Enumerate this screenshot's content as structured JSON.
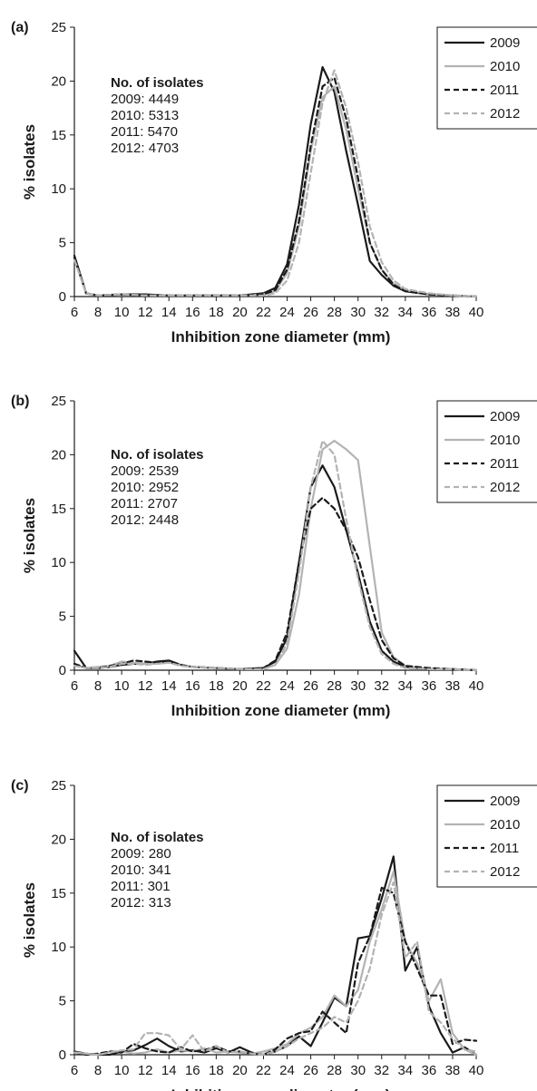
{
  "chart_data": [
    {
      "type": "line",
      "panel_label": "(a)",
      "xlabel": "Inhibition zone diameter (mm)",
      "ylabel": "% isolates",
      "xlim": [
        6,
        40
      ],
      "ylim": [
        0,
        25
      ],
      "x_ticks": [
        6,
        8,
        10,
        12,
        14,
        16,
        18,
        20,
        22,
        24,
        26,
        28,
        30,
        32,
        34,
        36,
        38,
        40
      ],
      "y_ticks": [
        0,
        5,
        10,
        15,
        20,
        25
      ],
      "grid": false,
      "legend_position": "top-right",
      "isolates": {
        "title": "No. of isolates",
        "lines": [
          "2009: 4449",
          "2010: 5313",
          "2011: 5470",
          "2012: 4703"
        ]
      },
      "series": [
        {
          "name": "2009",
          "color": "#1a1a1a",
          "dash": "solid",
          "x": [
            6,
            7,
            8,
            10,
            12,
            14,
            16,
            18,
            20,
            22,
            23,
            24,
            25,
            26,
            27,
            28,
            29,
            30,
            31,
            32,
            33,
            34,
            36,
            38,
            40
          ],
          "y": [
            3.8,
            0.3,
            0.1,
            0.2,
            0.2,
            0.1,
            0.1,
            0.1,
            0.1,
            0.3,
            0.8,
            3.0,
            8.5,
            16.0,
            21.3,
            19.0,
            13.5,
            8.5,
            3.3,
            2.0,
            1.0,
            0.5,
            0.2,
            0.1,
            0.0
          ]
        },
        {
          "name": "2010",
          "color": "#b3b3b3",
          "dash": "solid",
          "x": [
            6,
            7,
            8,
            10,
            12,
            14,
            16,
            18,
            20,
            22,
            23,
            24,
            25,
            26,
            27,
            28,
            29,
            30,
            31,
            32,
            33,
            34,
            36,
            38,
            40
          ],
          "y": [
            3.5,
            0.3,
            0.1,
            0.2,
            0.1,
            0.1,
            0.1,
            0.1,
            0.1,
            0.2,
            0.5,
            2.2,
            6.5,
            13.5,
            18.5,
            19.5,
            15.5,
            10.0,
            5.0,
            2.5,
            1.2,
            0.6,
            0.2,
            0.1,
            0.0
          ]
        },
        {
          "name": "2011",
          "color": "#1a1a1a",
          "dash": "dashed",
          "x": [
            6,
            7,
            8,
            10,
            12,
            14,
            16,
            18,
            20,
            22,
            23,
            24,
            25,
            26,
            27,
            28,
            29,
            30,
            31,
            32,
            33,
            34,
            36,
            38,
            40
          ],
          "y": [
            3.6,
            0.3,
            0.1,
            0.2,
            0.1,
            0.1,
            0.1,
            0.1,
            0.1,
            0.2,
            0.6,
            2.5,
            7.0,
            14.0,
            19.5,
            20.3,
            16.5,
            11.0,
            5.0,
            2.5,
            1.1,
            0.5,
            0.2,
            0.1,
            0.0
          ]
        },
        {
          "name": "2012",
          "color": "#b3b3b3",
          "dash": "dashed",
          "x": [
            6,
            7,
            8,
            10,
            12,
            14,
            16,
            18,
            20,
            22,
            23,
            24,
            25,
            26,
            27,
            28,
            29,
            30,
            31,
            32,
            33,
            34,
            36,
            38,
            40
          ],
          "y": [
            3.4,
            0.3,
            0.1,
            0.2,
            0.1,
            0.1,
            0.1,
            0.1,
            0.1,
            0.1,
            0.3,
            1.5,
            5.0,
            11.5,
            18.0,
            21.0,
            17.5,
            12.5,
            6.5,
            3.2,
            1.5,
            0.7,
            0.3,
            0.1,
            0.0
          ]
        }
      ]
    },
    {
      "type": "line",
      "panel_label": "(b)",
      "xlabel": "Inhibition zone diameter (mm)",
      "ylabel": "% isolates",
      "xlim": [
        6,
        40
      ],
      "ylim": [
        0,
        25
      ],
      "x_ticks": [
        6,
        8,
        10,
        12,
        14,
        16,
        18,
        20,
        22,
        24,
        26,
        28,
        30,
        32,
        34,
        36,
        38,
        40
      ],
      "y_ticks": [
        0,
        5,
        10,
        15,
        20,
        25
      ],
      "grid": false,
      "legend_position": "top-right",
      "isolates": {
        "title": "No. of isolates",
        "lines": [
          "2009: 2539",
          "2010: 2952",
          "2011: 2707",
          "2012: 2448"
        ]
      },
      "series": [
        {
          "name": "2009",
          "color": "#1a1a1a",
          "dash": "solid",
          "x": [
            6,
            7,
            8,
            9,
            10,
            11,
            12,
            13,
            14,
            15,
            16,
            18,
            20,
            22,
            23,
            24,
            25,
            26,
            27,
            28,
            29,
            30,
            31,
            32,
            33,
            34,
            36,
            38,
            40
          ],
          "y": [
            1.8,
            0.2,
            0.2,
            0.3,
            0.5,
            0.6,
            0.6,
            0.8,
            0.9,
            0.5,
            0.3,
            0.2,
            0.1,
            0.2,
            0.8,
            3.0,
            10.0,
            17.0,
            19.0,
            17.0,
            13.0,
            9.0,
            4.5,
            1.8,
            0.8,
            0.3,
            0.1,
            0.1,
            0.0
          ]
        },
        {
          "name": "2010",
          "color": "#b3b3b3",
          "dash": "solid",
          "x": [
            6,
            7,
            8,
            9,
            10,
            11,
            12,
            13,
            14,
            15,
            16,
            18,
            20,
            22,
            23,
            24,
            25,
            26,
            27,
            28,
            29,
            30,
            31,
            32,
            33,
            34,
            36,
            38,
            40
          ],
          "y": [
            0.5,
            0.2,
            0.3,
            0.4,
            0.8,
            0.7,
            0.6,
            0.6,
            0.7,
            0.5,
            0.3,
            0.2,
            0.1,
            0.1,
            0.5,
            2.0,
            7.0,
            15.0,
            20.5,
            21.3,
            20.5,
            19.5,
            11.5,
            3.5,
            1.2,
            0.4,
            0.1,
            0.1,
            0.0
          ]
        },
        {
          "name": "2011",
          "color": "#1a1a1a",
          "dash": "dashed",
          "x": [
            6,
            7,
            8,
            9,
            10,
            11,
            12,
            13,
            14,
            15,
            16,
            18,
            20,
            22,
            23,
            24,
            25,
            26,
            27,
            28,
            29,
            30,
            31,
            32,
            33,
            34,
            36,
            38,
            40
          ],
          "y": [
            0.6,
            0.2,
            0.2,
            0.4,
            0.6,
            0.9,
            0.8,
            0.7,
            0.8,
            0.5,
            0.3,
            0.2,
            0.1,
            0.2,
            0.9,
            3.5,
            10.0,
            15.0,
            16.0,
            15.0,
            13.0,
            10.5,
            6.5,
            2.8,
            1.1,
            0.4,
            0.2,
            0.1,
            0.0
          ]
        },
        {
          "name": "2012",
          "color": "#b3b3b3",
          "dash": "dashed",
          "x": [
            6,
            7,
            8,
            9,
            10,
            11,
            12,
            13,
            14,
            15,
            16,
            18,
            20,
            22,
            23,
            24,
            25,
            26,
            27,
            28,
            29,
            30,
            31,
            32,
            33,
            34,
            36,
            38,
            40
          ],
          "y": [
            0.4,
            0.2,
            0.2,
            0.3,
            0.6,
            0.6,
            0.5,
            0.6,
            0.7,
            0.4,
            0.3,
            0.2,
            0.1,
            0.1,
            0.5,
            2.5,
            9.0,
            17.0,
            21.3,
            20.0,
            14.0,
            8.5,
            4.0,
            1.5,
            0.6,
            0.2,
            0.1,
            0.1,
            0.0
          ]
        }
      ]
    },
    {
      "type": "line",
      "panel_label": "(c)",
      "xlabel": "Inhibition zone diameter (mm)",
      "ylabel": "% isolates",
      "xlim": [
        6,
        40
      ],
      "ylim": [
        0,
        25
      ],
      "x_ticks": [
        6,
        8,
        10,
        12,
        14,
        16,
        18,
        20,
        22,
        24,
        26,
        28,
        30,
        32,
        34,
        36,
        38,
        40
      ],
      "y_ticks": [
        0,
        5,
        10,
        15,
        20,
        25
      ],
      "grid": false,
      "legend_position": "top-right",
      "isolates": {
        "title": "No. of isolates",
        "lines": [
          "2009: 280",
          "2010: 341",
          "2011: 301",
          "2012: 313"
        ]
      },
      "series": [
        {
          "name": "2009",
          "color": "#1a1a1a",
          "dash": "solid",
          "x": [
            6,
            7,
            8,
            9,
            10,
            11,
            12,
            13,
            14,
            15,
            16,
            17,
            18,
            19,
            20,
            21,
            22,
            23,
            24,
            25,
            26,
            27,
            28,
            29,
            30,
            31,
            32,
            33,
            34,
            35,
            36,
            37,
            38,
            39,
            40
          ],
          "y": [
            0.3,
            0.1,
            0.0,
            0.0,
            0.3,
            0.4,
            0.9,
            1.5,
            0.8,
            0.3,
            0.4,
            0.2,
            0.6,
            0.2,
            0.7,
            0.2,
            0.0,
            0.3,
            0.8,
            1.7,
            0.8,
            3.0,
            5.3,
            4.5,
            10.8,
            11.0,
            14.5,
            18.4,
            7.8,
            10.0,
            4.5,
            2.0,
            0.2,
            0.7,
            0.0
          ]
        },
        {
          "name": "2010",
          "color": "#b3b3b3",
          "dash": "solid",
          "x": [
            6,
            7,
            8,
            9,
            10,
            11,
            12,
            13,
            14,
            15,
            16,
            17,
            18,
            19,
            20,
            21,
            22,
            23,
            24,
            25,
            26,
            27,
            28,
            29,
            30,
            31,
            32,
            33,
            34,
            35,
            36,
            37,
            38,
            39,
            40
          ],
          "y": [
            0.2,
            0.1,
            0.0,
            0.3,
            0.3,
            0.1,
            0.2,
            0.5,
            0.2,
            0.4,
            0.3,
            0.6,
            0.2,
            0.3,
            0.2,
            0.1,
            0.3,
            0.6,
            1.0,
            2.0,
            2.5,
            3.5,
            5.5,
            4.5,
            6.0,
            10.5,
            13.5,
            17.0,
            10.5,
            8.5,
            5.0,
            7.0,
            2.0,
            0.5,
            0.0
          ]
        },
        {
          "name": "2011",
          "color": "#1a1a1a",
          "dash": "dashed",
          "x": [
            6,
            7,
            8,
            9,
            10,
            11,
            12,
            13,
            14,
            15,
            16,
            17,
            18,
            19,
            20,
            21,
            22,
            23,
            24,
            25,
            26,
            27,
            28,
            29,
            30,
            31,
            32,
            33,
            34,
            35,
            36,
            37,
            38,
            39,
            40
          ],
          "y": [
            0.2,
            0.0,
            0.1,
            0.3,
            0.2,
            1.0,
            0.6,
            0.3,
            0.2,
            0.7,
            0.3,
            0.4,
            0.8,
            0.3,
            0.3,
            0.1,
            0.0,
            0.5,
            1.5,
            2.0,
            2.2,
            4.0,
            3.0,
            2.0,
            8.5,
            11.0,
            15.5,
            15.0,
            10.5,
            8.0,
            5.5,
            5.5,
            1.0,
            1.4,
            1.3
          ]
        },
        {
          "name": "2012",
          "color": "#b3b3b3",
          "dash": "dashed",
          "x": [
            6,
            7,
            8,
            9,
            10,
            11,
            12,
            13,
            14,
            15,
            16,
            17,
            18,
            19,
            20,
            21,
            22,
            23,
            24,
            25,
            26,
            27,
            28,
            29,
            30,
            31,
            32,
            33,
            34,
            35,
            36,
            37,
            38,
            39,
            40
          ],
          "y": [
            0.2,
            0.1,
            0.0,
            0.2,
            0.4,
            0.5,
            2.0,
            2.0,
            1.8,
            0.5,
            1.8,
            0.3,
            0.8,
            0.2,
            0.3,
            0.1,
            0.0,
            0.3,
            0.8,
            1.5,
            2.0,
            2.5,
            3.5,
            3.0,
            5.0,
            8.0,
            13.0,
            16.0,
            9.0,
            10.5,
            4.0,
            3.0,
            1.5,
            0.5,
            0.3
          ]
        }
      ]
    }
  ]
}
